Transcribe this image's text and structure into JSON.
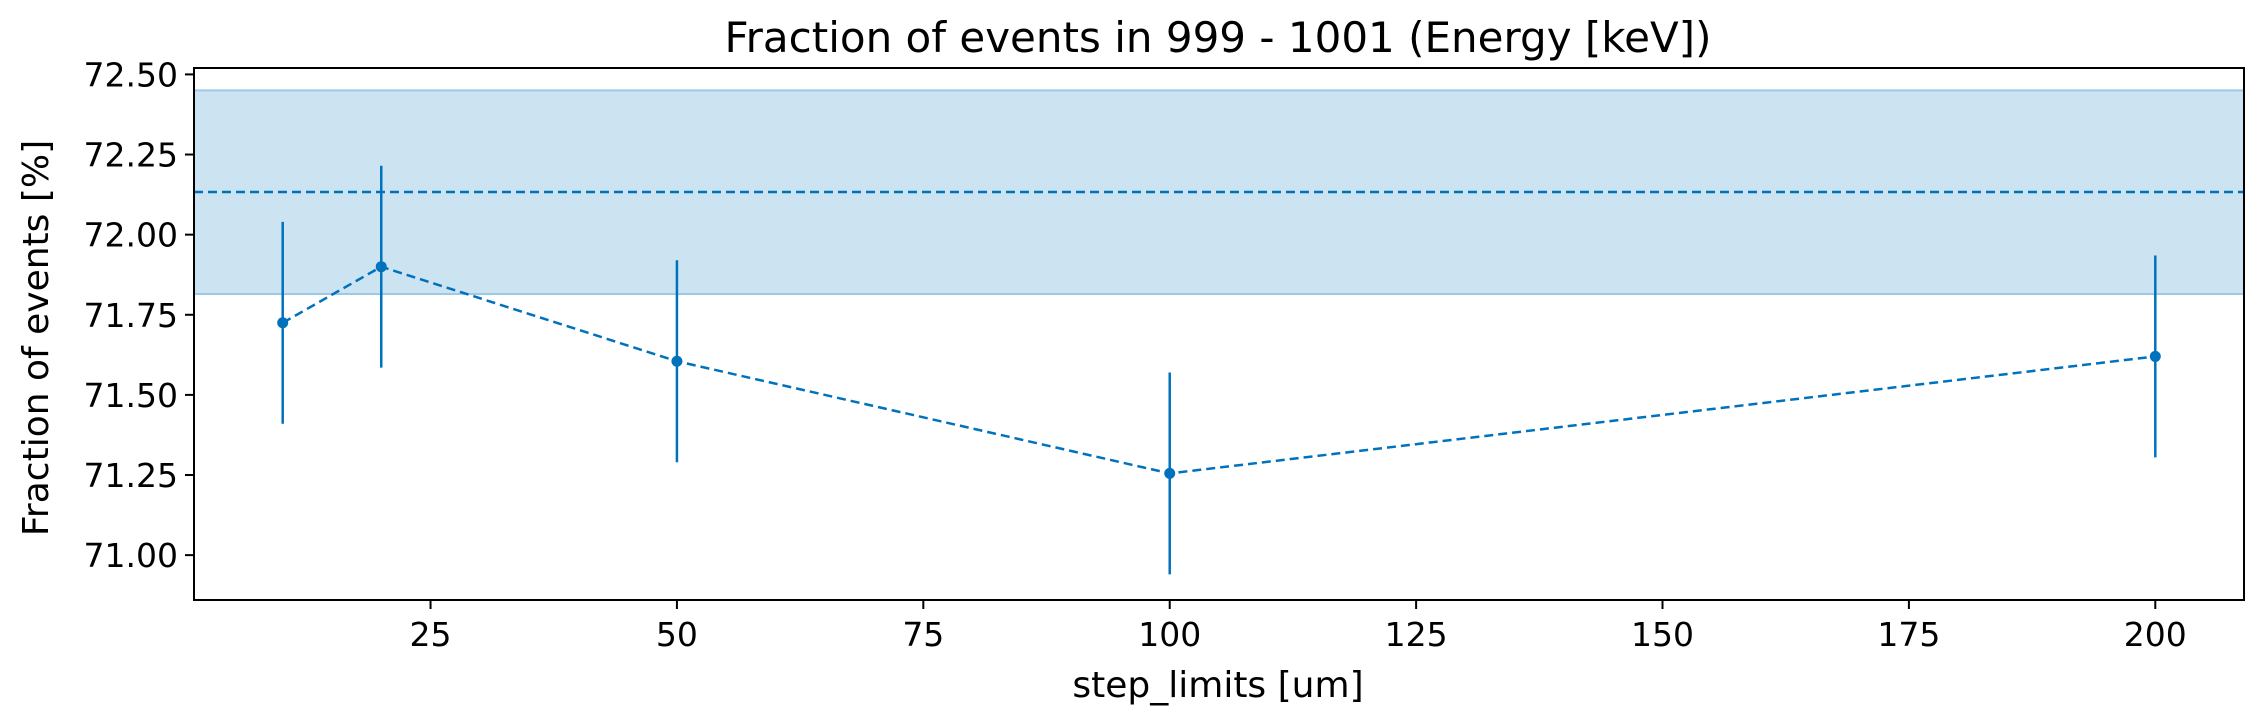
{
  "chart_data": {
    "type": "line",
    "title": "Fraction of events in 999 - 1001 (Energy [keV])",
    "xlabel": "step_limits [um]",
    "ylabel": "Fraction of events [%]",
    "xlim": [
      1,
      209
    ],
    "ylim": [
      70.86,
      72.52
    ],
    "xticks": [
      25,
      50,
      75,
      100,
      125,
      150,
      175,
      200
    ],
    "xtick_labels": [
      "25",
      "50",
      "75",
      "100",
      "125",
      "150",
      "175",
      "200"
    ],
    "yticks": [
      71.0,
      71.25,
      71.5,
      71.75,
      72.0,
      72.25,
      72.5
    ],
    "ytick_labels": [
      "71.00",
      "71.25",
      "71.50",
      "71.75",
      "72.00",
      "72.25",
      "72.50"
    ],
    "grid": false,
    "series": [
      {
        "x": [
          10,
          20,
          50,
          100,
          200
        ],
        "y": [
          71.725,
          71.9,
          71.605,
          71.255,
          71.62
        ],
        "yerr": [
          0.315,
          0.315,
          0.315,
          0.315,
          0.315
        ],
        "color": "#0072bd",
        "linestyle": "dashed",
        "marker": "circle"
      }
    ],
    "reference": {
      "value": 72.133,
      "band": [
        71.815,
        72.45
      ],
      "line_color": "#0072bd",
      "band_color": "#cce3f1",
      "linestyle": "dashed"
    }
  }
}
